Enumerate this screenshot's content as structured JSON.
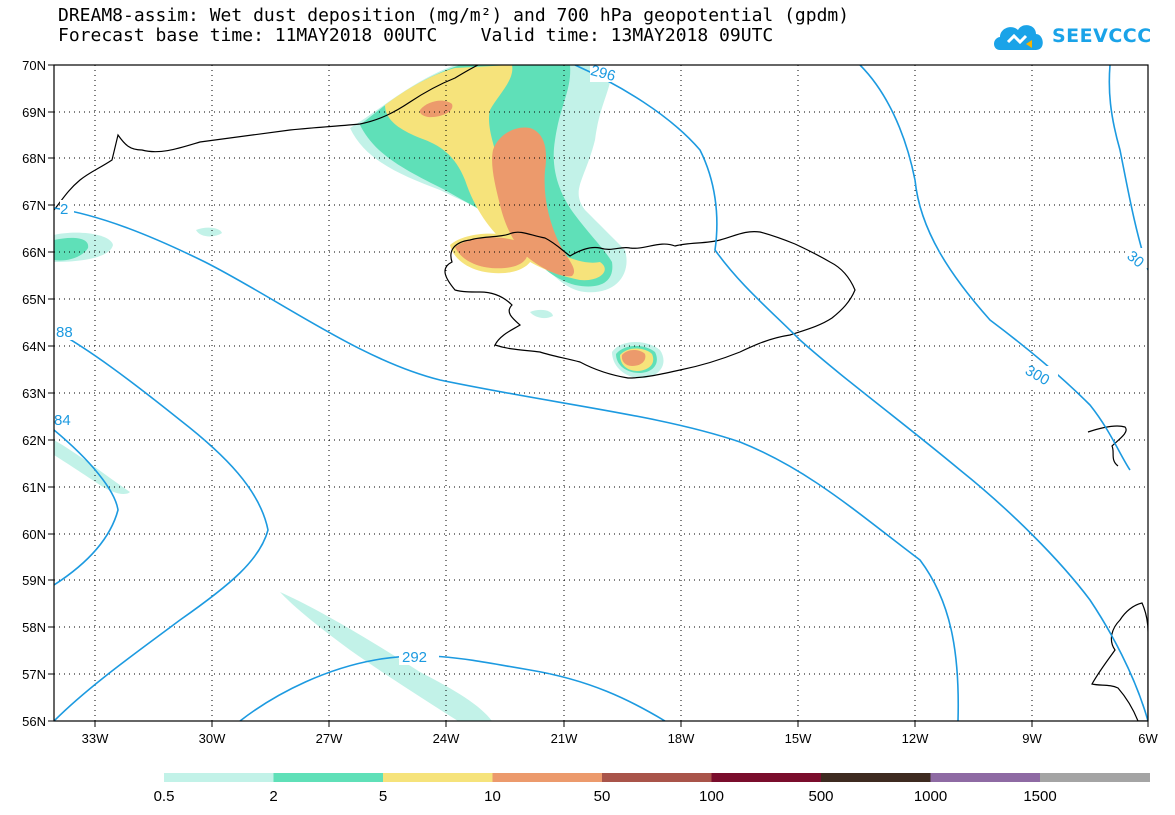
{
  "header": {
    "title_line1": "DREAM8-assim: Wet dust deposition (mg/m²) and 700 hPa geopotential (gpdm)",
    "title_line2": "Forecast base time: 11MAY2018 00UTC    Valid time: 13MAY2018 09UTC"
  },
  "logo": {
    "text": "SEEVCCC",
    "icon": "cloud-logo-icon"
  },
  "axes": {
    "lat_labels": [
      "70N",
      "69N",
      "68N",
      "67N",
      "66N",
      "65N",
      "64N",
      "63N",
      "62N",
      "61N",
      "60N",
      "59N",
      "58N",
      "57N",
      "56N"
    ],
    "lon_labels": [
      "33W",
      "30W",
      "27W",
      "24W",
      "21W",
      "18W",
      "15W",
      "12W",
      "9W",
      "6W"
    ]
  },
  "contours": {
    "labels": [
      "296",
      "300",
      "30",
      "292",
      "88",
      "84",
      "2"
    ],
    "line_color": "#1c9ae0"
  },
  "legend": {
    "colors": [
      "#c2f2e8",
      "#5fe0b8",
      "#f6e37b",
      "#ec9a6c",
      "#a9544a",
      "#7a0d2c",
      "#3e2a20",
      "#8e6aa3",
      "#a4a4a4"
    ],
    "labels": [
      "0.5",
      "2",
      "5",
      "10",
      "50",
      "100",
      "500",
      "1000",
      "1500"
    ]
  }
}
